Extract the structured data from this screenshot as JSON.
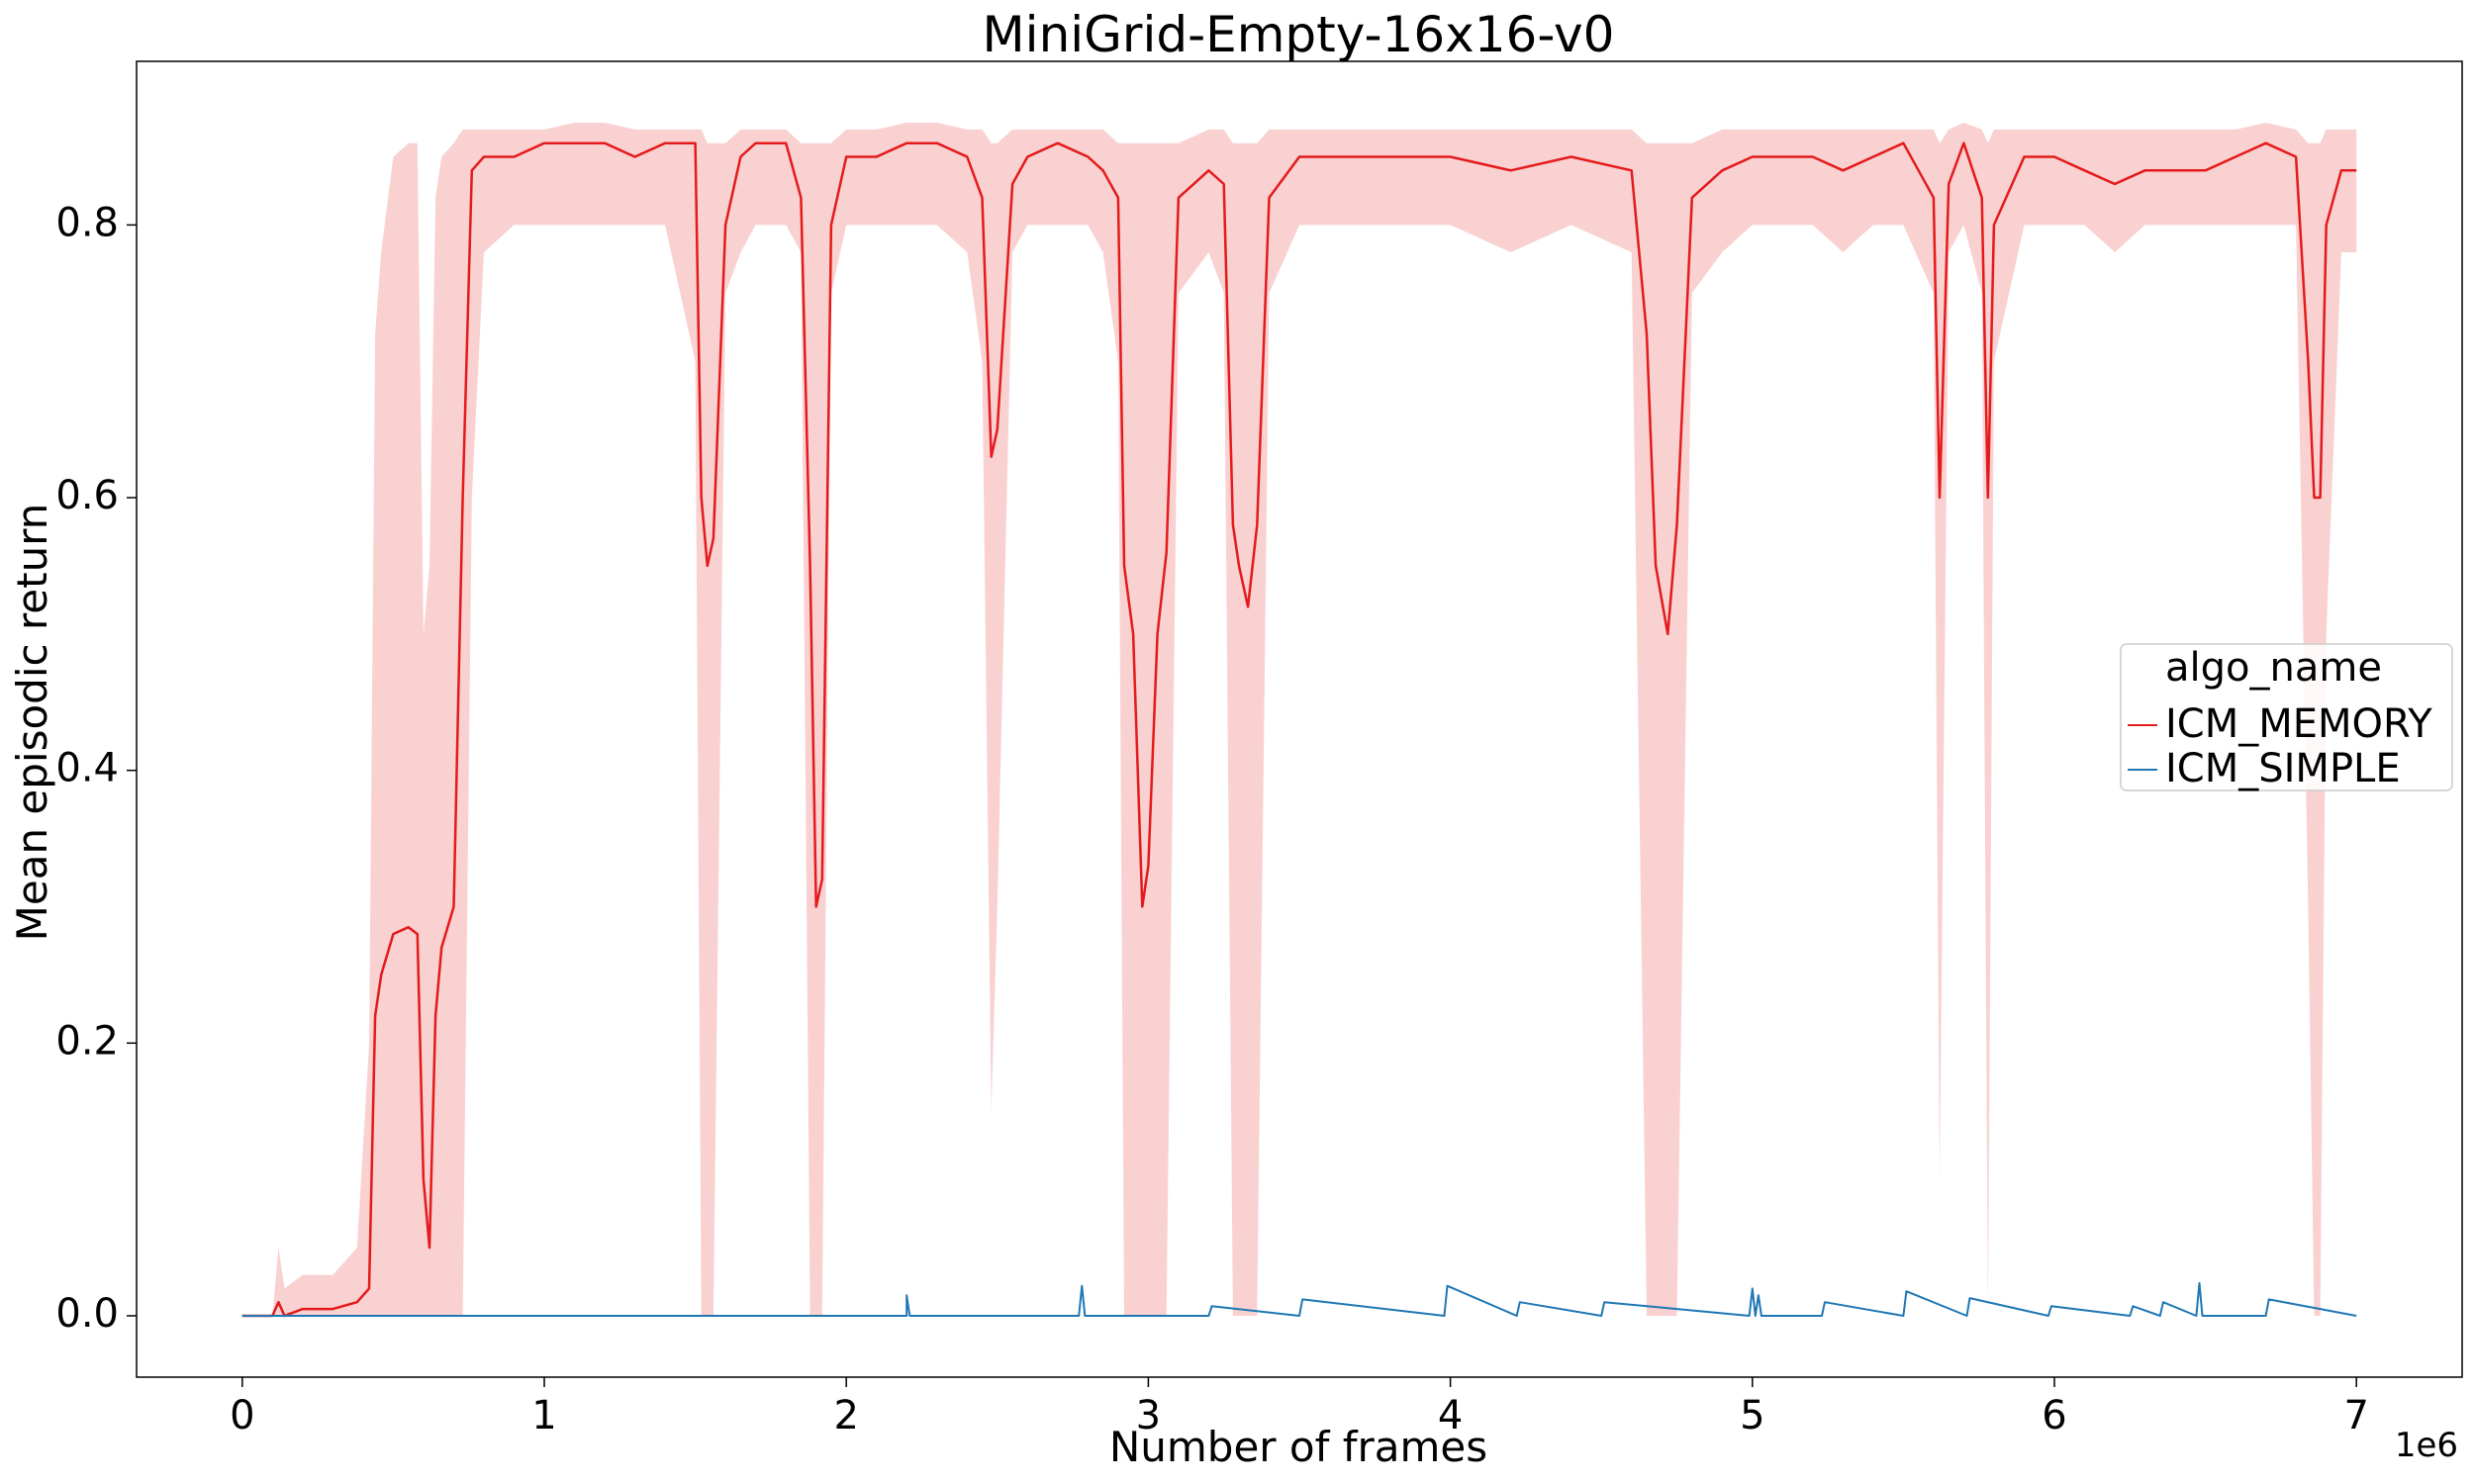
{
  "chart_data": {
    "type": "line",
    "title": "MiniGrid-Empty-16x16-v0",
    "xlabel": "Number of frames",
    "ylabel": "Mean episodic return",
    "x_offset_label": "1e6",
    "xlim": [
      -0.35,
      7.35
    ],
    "ylim": [
      -0.045,
      0.92
    ],
    "x_ticks": [
      0,
      1,
      2,
      3,
      4,
      5,
      6,
      7
    ],
    "x_tick_labels": [
      "0",
      "1",
      "2",
      "3",
      "4",
      "5",
      "6",
      "7"
    ],
    "y_ticks": [
      0.0,
      0.2,
      0.4,
      0.6,
      0.8
    ],
    "y_tick_labels": [
      "0.0",
      "0.2",
      "0.4",
      "0.6",
      "0.8"
    ],
    "grid": false,
    "legend": {
      "title": "algo_name",
      "placement": "center-right"
    },
    "series": [
      {
        "name": "ICM_MEMORY",
        "color": "#e41a1c",
        "band_color": "#f4a3a3",
        "x": [
          0.0,
          0.1,
          0.12,
          0.14,
          0.2,
          0.3,
          0.38,
          0.42,
          0.44,
          0.46,
          0.5,
          0.55,
          0.58,
          0.6,
          0.62,
          0.64,
          0.66,
          0.7,
          0.73,
          0.76,
          0.8,
          0.9,
          1.0,
          1.1,
          1.2,
          1.3,
          1.4,
          1.5,
          1.52,
          1.54,
          1.56,
          1.6,
          1.65,
          1.7,
          1.8,
          1.85,
          1.88,
          1.9,
          1.92,
          1.95,
          2.0,
          2.1,
          2.2,
          2.3,
          2.4,
          2.45,
          2.48,
          2.5,
          2.55,
          2.6,
          2.7,
          2.8,
          2.85,
          2.9,
          2.92,
          2.95,
          2.98,
          3.0,
          3.03,
          3.06,
          3.1,
          3.2,
          3.25,
          3.28,
          3.3,
          3.33,
          3.36,
          3.4,
          3.5,
          3.6,
          3.8,
          4.0,
          4.2,
          4.4,
          4.6,
          4.65,
          4.68,
          4.72,
          4.75,
          4.8,
          4.9,
          5.0,
          5.1,
          5.2,
          5.3,
          5.4,
          5.5,
          5.6,
          5.62,
          5.65,
          5.7,
          5.76,
          5.78,
          5.8,
          5.9,
          6.0,
          6.1,
          6.2,
          6.3,
          6.4,
          6.5,
          6.6,
          6.7,
          6.8,
          6.84,
          6.86,
          6.88,
          6.9,
          6.95,
          7.0
        ],
        "y": [
          0.0,
          0.0,
          0.01,
          0.0,
          0.005,
          0.005,
          0.01,
          0.02,
          0.22,
          0.25,
          0.28,
          0.285,
          0.28,
          0.1,
          0.05,
          0.22,
          0.27,
          0.3,
          0.6,
          0.84,
          0.85,
          0.85,
          0.86,
          0.86,
          0.86,
          0.85,
          0.86,
          0.86,
          0.6,
          0.55,
          0.57,
          0.8,
          0.85,
          0.86,
          0.86,
          0.82,
          0.55,
          0.3,
          0.32,
          0.8,
          0.85,
          0.85,
          0.86,
          0.86,
          0.85,
          0.82,
          0.63,
          0.65,
          0.83,
          0.85,
          0.86,
          0.85,
          0.84,
          0.82,
          0.55,
          0.5,
          0.3,
          0.33,
          0.5,
          0.56,
          0.82,
          0.84,
          0.83,
          0.58,
          0.55,
          0.52,
          0.58,
          0.82,
          0.85,
          0.85,
          0.85,
          0.85,
          0.84,
          0.85,
          0.84,
          0.72,
          0.55,
          0.5,
          0.58,
          0.82,
          0.84,
          0.85,
          0.85,
          0.85,
          0.84,
          0.85,
          0.86,
          0.82,
          0.6,
          0.83,
          0.86,
          0.82,
          0.6,
          0.8,
          0.85,
          0.85,
          0.84,
          0.83,
          0.84,
          0.84,
          0.84,
          0.85,
          0.86,
          0.85,
          0.7,
          0.6,
          0.6,
          0.8,
          0.84,
          0.84
        ],
        "lower": [
          0.0,
          0.0,
          0.0,
          0.0,
          0.0,
          0.0,
          0.0,
          0.0,
          0.0,
          0.0,
          0.0,
          0.0,
          0.0,
          0.0,
          0.0,
          0.0,
          0.0,
          0.0,
          0.0,
          0.6,
          0.78,
          0.8,
          0.8,
          0.8,
          0.8,
          0.8,
          0.8,
          0.7,
          0.0,
          0.0,
          0.0,
          0.75,
          0.78,
          0.8,
          0.8,
          0.78,
          0.0,
          0.0,
          0.0,
          0.75,
          0.8,
          0.8,
          0.8,
          0.8,
          0.78,
          0.7,
          0.15,
          0.3,
          0.78,
          0.8,
          0.8,
          0.8,
          0.78,
          0.7,
          0.0,
          0.0,
          0.0,
          0.0,
          0.0,
          0.0,
          0.75,
          0.78,
          0.75,
          0.0,
          0.0,
          0.0,
          0.0,
          0.75,
          0.8,
          0.8,
          0.8,
          0.8,
          0.78,
          0.8,
          0.78,
          0.0,
          0.0,
          0.0,
          0.0,
          0.75,
          0.78,
          0.8,
          0.8,
          0.8,
          0.78,
          0.8,
          0.8,
          0.75,
          0.1,
          0.78,
          0.8,
          0.75,
          0.0,
          0.7,
          0.8,
          0.8,
          0.8,
          0.78,
          0.8,
          0.8,
          0.8,
          0.8,
          0.8,
          0.8,
          0.3,
          0.0,
          0.0,
          0.5,
          0.78,
          0.78
        ],
        "upper": [
          0.0,
          0.0,
          0.05,
          0.02,
          0.03,
          0.03,
          0.05,
          0.2,
          0.72,
          0.78,
          0.85,
          0.86,
          0.86,
          0.5,
          0.55,
          0.82,
          0.85,
          0.86,
          0.87,
          0.87,
          0.87,
          0.87,
          0.87,
          0.875,
          0.875,
          0.87,
          0.87,
          0.87,
          0.87,
          0.86,
          0.86,
          0.86,
          0.87,
          0.87,
          0.87,
          0.86,
          0.86,
          0.86,
          0.86,
          0.86,
          0.87,
          0.87,
          0.875,
          0.875,
          0.87,
          0.87,
          0.86,
          0.86,
          0.87,
          0.87,
          0.87,
          0.87,
          0.87,
          0.86,
          0.86,
          0.86,
          0.86,
          0.86,
          0.86,
          0.86,
          0.86,
          0.87,
          0.87,
          0.86,
          0.86,
          0.86,
          0.86,
          0.87,
          0.87,
          0.87,
          0.87,
          0.87,
          0.87,
          0.87,
          0.87,
          0.86,
          0.86,
          0.86,
          0.86,
          0.86,
          0.87,
          0.87,
          0.87,
          0.87,
          0.87,
          0.87,
          0.87,
          0.87,
          0.86,
          0.87,
          0.875,
          0.87,
          0.86,
          0.87,
          0.87,
          0.87,
          0.87,
          0.87,
          0.87,
          0.87,
          0.87,
          0.87,
          0.875,
          0.87,
          0.86,
          0.86,
          0.86,
          0.87,
          0.87,
          0.87
        ]
      },
      {
        "name": "ICM_SIMPLE",
        "color": "#1f77b4",
        "x": [
          0.0,
          0.4,
          0.6,
          1.5,
          2.2,
          2.2,
          2.21,
          2.77,
          2.78,
          2.79,
          3.2,
          3.21,
          3.5,
          3.51,
          3.98,
          3.99,
          4.22,
          4.23,
          4.5,
          4.51,
          4.99,
          5.0,
          5.01,
          5.02,
          5.03,
          5.04,
          5.23,
          5.24,
          5.5,
          5.51,
          5.71,
          5.72,
          5.98,
          5.99,
          6.25,
          6.26,
          6.35,
          6.36,
          6.47,
          6.48,
          6.49,
          6.7,
          6.71,
          7.0
        ],
        "y": [
          0.0,
          0.0,
          0.0,
          0.0,
          0.0,
          0.015,
          0.0,
          0.0,
          0.022,
          0.0,
          0.0,
          0.007,
          0.0,
          0.012,
          0.0,
          0.022,
          0.0,
          0.01,
          0.0,
          0.01,
          0.0,
          0.02,
          0.0,
          0.015,
          0.0,
          0.0,
          0.0,
          0.01,
          0.0,
          0.018,
          0.0,
          0.013,
          0.0,
          0.007,
          0.0,
          0.007,
          0.0,
          0.01,
          0.0,
          0.024,
          0.0,
          0.0,
          0.012,
          0.0
        ]
      }
    ]
  }
}
